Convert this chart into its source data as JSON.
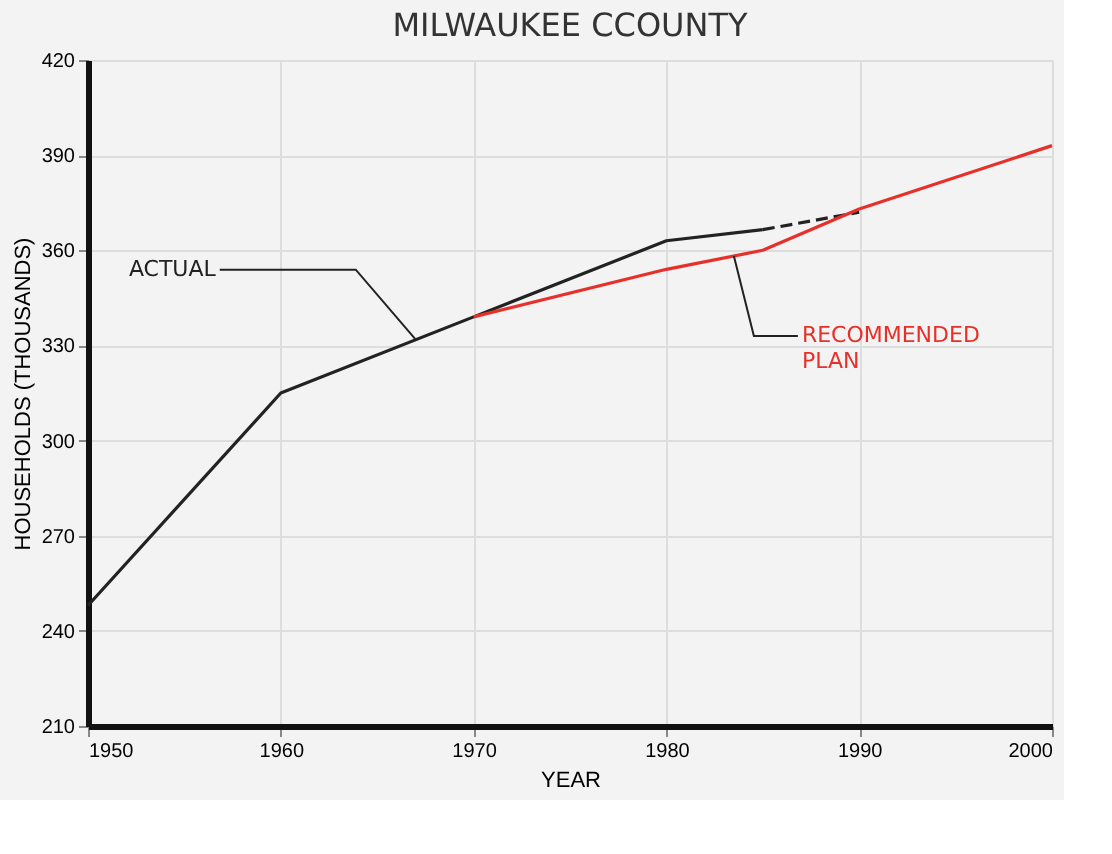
{
  "chart_data": {
    "type": "line",
    "title": "MILWAUKEE CCOUNTY",
    "xlabel": "YEAR",
    "ylabel": "HOUSEHOLDS (THOUSANDS)",
    "xlim": [
      1950,
      2000
    ],
    "xticks": [
      1950,
      1960,
      1970,
      1980,
      1990,
      2000
    ],
    "ylim": [
      210,
      420
    ],
    "yticks": [
      210,
      240,
      270,
      300,
      330,
      360,
      390,
      420
    ],
    "grid": true,
    "series": [
      {
        "name": "ACTUAL",
        "color": "#222222",
        "x": [
          1950,
          1960,
          1970,
          1980,
          1985
        ],
        "values": [
          248,
          315,
          339,
          363,
          366.5
        ],
        "line_style": "solid"
      },
      {
        "color": "#222222",
        "x": [
          1985,
          1990
        ],
        "values": [
          366.5,
          372
        ],
        "line_style": "dashed"
      },
      {
        "name": "RECOMMENDED PLAN",
        "color": "#e8302a",
        "x": [
          1970,
          1980,
          1985,
          1990,
          2000
        ],
        "values": [
          339,
          354,
          360,
          373,
          393
        ],
        "line_style": "solid"
      }
    ]
  }
}
